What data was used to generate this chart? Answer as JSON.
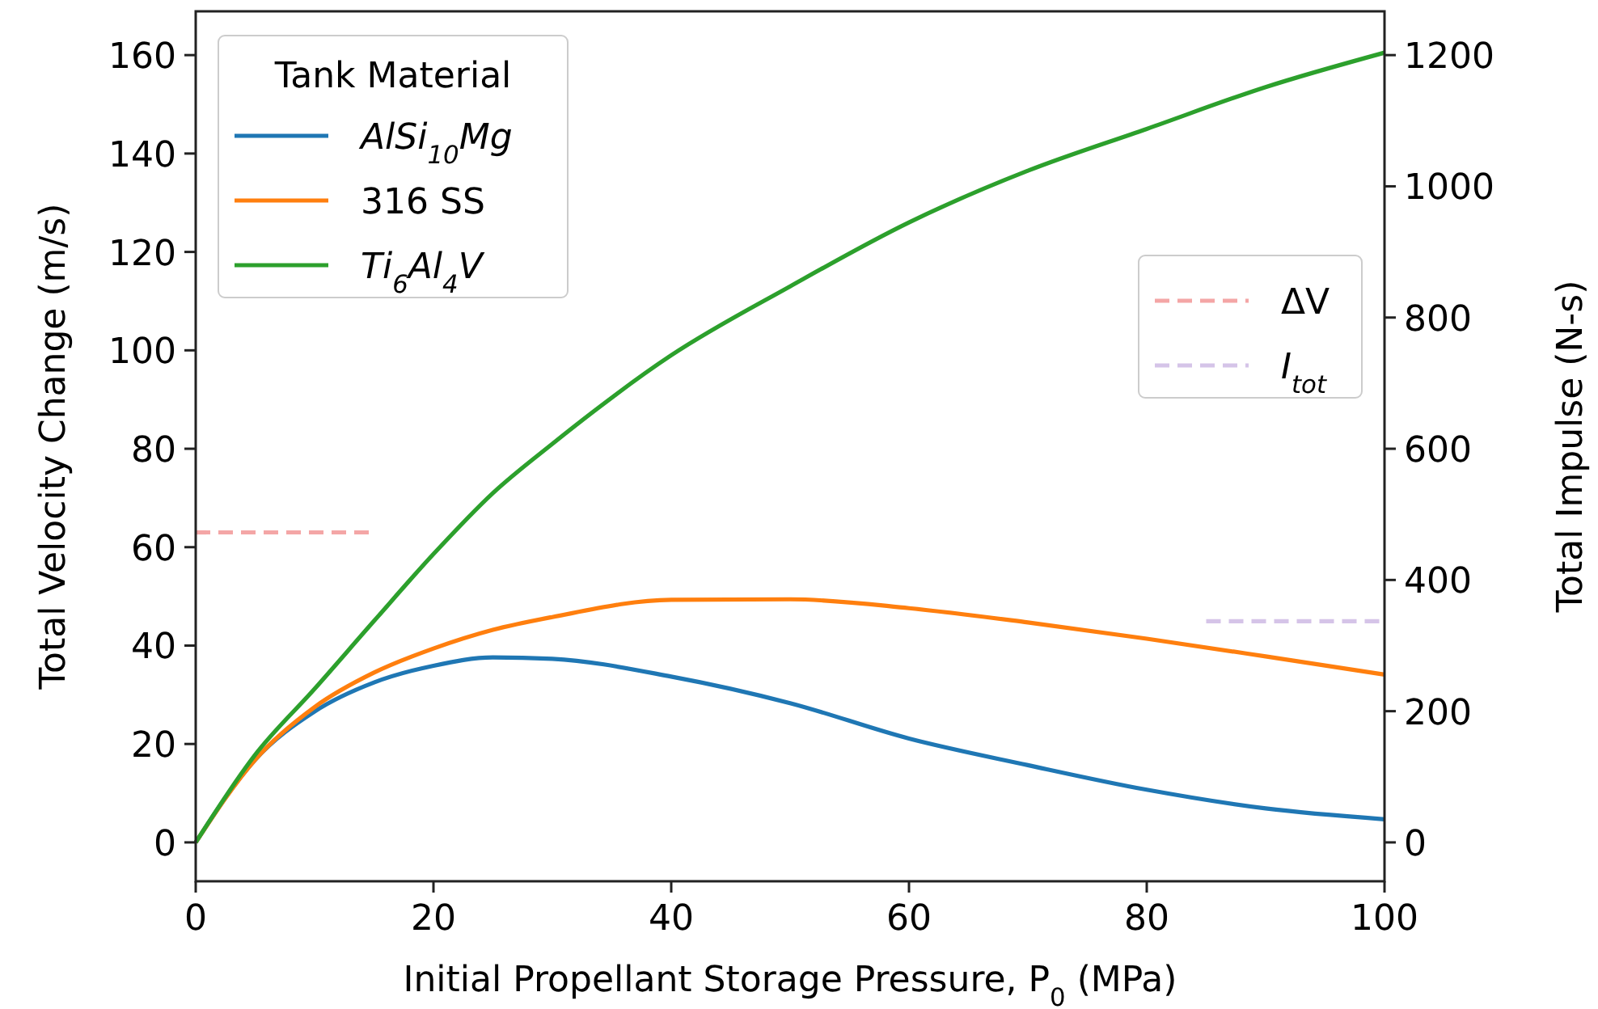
{
  "chart_data": {
    "type": "line",
    "xlabel": "Initial Propellant Storage Pressure, P$_{0}$ (MPa)",
    "ylabel": "Total Velocity Change (m/s)",
    "y2label": "Total Impulse (N-s)",
    "legend_title": "Tank Material",
    "legend": "top left",
    "xlim": [
      0,
      100
    ],
    "xticks": [
      0,
      20,
      40,
      60,
      80,
      100
    ],
    "ylim": [
      -7.9,
      168.9
    ],
    "yticks": [
      0,
      20,
      40,
      60,
      80,
      100,
      120,
      140,
      160
    ],
    "y2lim": [
      -59.25,
      1266.75
    ],
    "y2ticks": [
      0,
      200,
      400,
      600,
      800,
      1000,
      1200
    ],
    "line_style": "solid",
    "x": [
      0,
      5,
      10,
      15,
      20,
      25,
      30,
      40,
      50,
      60,
      70,
      80,
      90,
      100
    ],
    "series": [
      {
        "name": "AlSi$_{10}$Mg",
        "color": "#1f77b4",
        "values": [
          0,
          16.8,
          26.6,
          32.5,
          35.9,
          37.6,
          37.3,
          33.7,
          28.3,
          21.1,
          15.7,
          10.7,
          6.9,
          4.7
        ]
      },
      {
        "name": "316 SS",
        "color": "#ff7f0e",
        "values": [
          0,
          16.8,
          27.5,
          34.5,
          39.4,
          43.2,
          45.8,
          49.3,
          49.4,
          47.6,
          44.7,
          41.4,
          37.8,
          34.1
        ]
      },
      {
        "name": "Ti$_{6}$Al$_{4}$V",
        "color": "#2ca02c",
        "values": [
          0,
          17.8,
          31.2,
          45,
          58.6,
          71,
          81,
          99,
          113,
          126,
          136.5,
          145,
          153.5,
          160.5
        ]
      },
      {
        "name": "ΔV",
        "color": "#f4a6a6",
        "line_style": "dashed",
        "x": [
          0,
          15
        ],
        "values": [
          63,
          63
        ]
      },
      {
        "name": "I$_{tot}$",
        "color": "#d5c4e8",
        "line_style": "dashed",
        "axis": "y2",
        "x": [
          85,
          100
        ],
        "values": [
          337,
          337
        ]
      }
    ]
  }
}
